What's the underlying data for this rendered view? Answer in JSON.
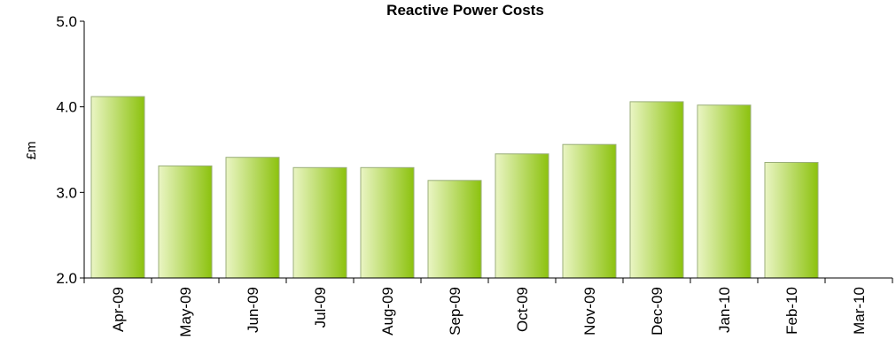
{
  "chart_data": {
    "type": "bar",
    "title": "Reactive Power Costs",
    "ylabel": "£m",
    "xlabel": "",
    "ylim": [
      2.0,
      5.0
    ],
    "yticks": [
      "2.0",
      "3.0",
      "4.0",
      "5.0"
    ],
    "categories": [
      "Apr-09",
      "May-09",
      "Jun-09",
      "Jul-09",
      "Aug-09",
      "Sep-09",
      "Oct-09",
      "Nov-09",
      "Dec-09",
      "Jan-10",
      "Feb-10",
      "Mar-10"
    ],
    "values": [
      4.12,
      3.31,
      3.41,
      3.29,
      3.29,
      3.14,
      3.45,
      3.56,
      4.06,
      4.02,
      3.35,
      null
    ],
    "grid": false,
    "legend": "none",
    "colors": {
      "bar_light": "#eaf5c4",
      "bar_dark": "#8cc20e",
      "bar_edge": "#9aae7a",
      "axis": "#000000"
    }
  }
}
